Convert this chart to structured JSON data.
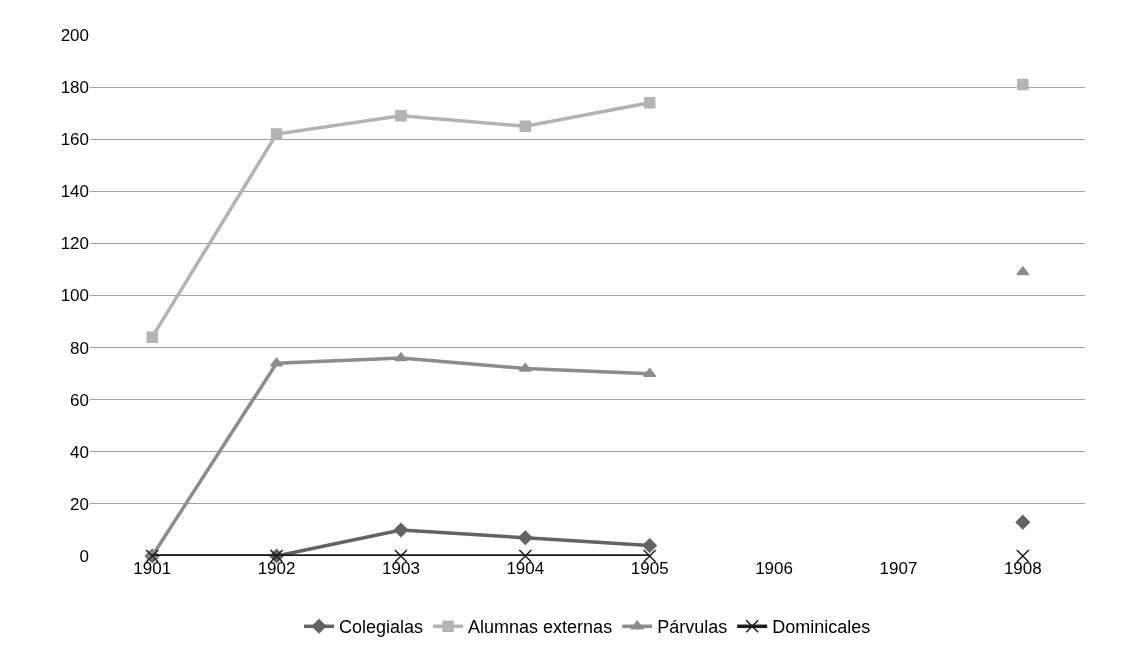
{
  "chart_data": {
    "type": "line",
    "categories": [
      "1901",
      "1902",
      "1903",
      "1904",
      "1905",
      "1906",
      "1907",
      "1908"
    ],
    "series": [
      {
        "name": "Colegialas",
        "color": "#636363",
        "marker": "diamond",
        "values": [
          0,
          0,
          10,
          7,
          4,
          null,
          null,
          13
        ]
      },
      {
        "name": "Alumnas externas",
        "color": "#b3b3b3",
        "marker": "square",
        "values": [
          84,
          162,
          169,
          165,
          174,
          null,
          null,
          181
        ]
      },
      {
        "name": "Párvulas",
        "color": "#8c8c8c",
        "marker": "triangle",
        "values": [
          0,
          74,
          76,
          72,
          70,
          null,
          null,
          109
        ]
      },
      {
        "name": "Dominicales",
        "color": "#1a1a1a",
        "marker": "cross",
        "values": [
          0,
          0,
          0,
          0,
          0,
          null,
          null,
          0
        ]
      }
    ],
    "ylim": [
      0,
      200
    ],
    "yticks": [
      0,
      20,
      40,
      60,
      80,
      100,
      120,
      140,
      160,
      180,
      200
    ],
    "grid": "y",
    "legend": "bottom",
    "line_style": "solid"
  }
}
